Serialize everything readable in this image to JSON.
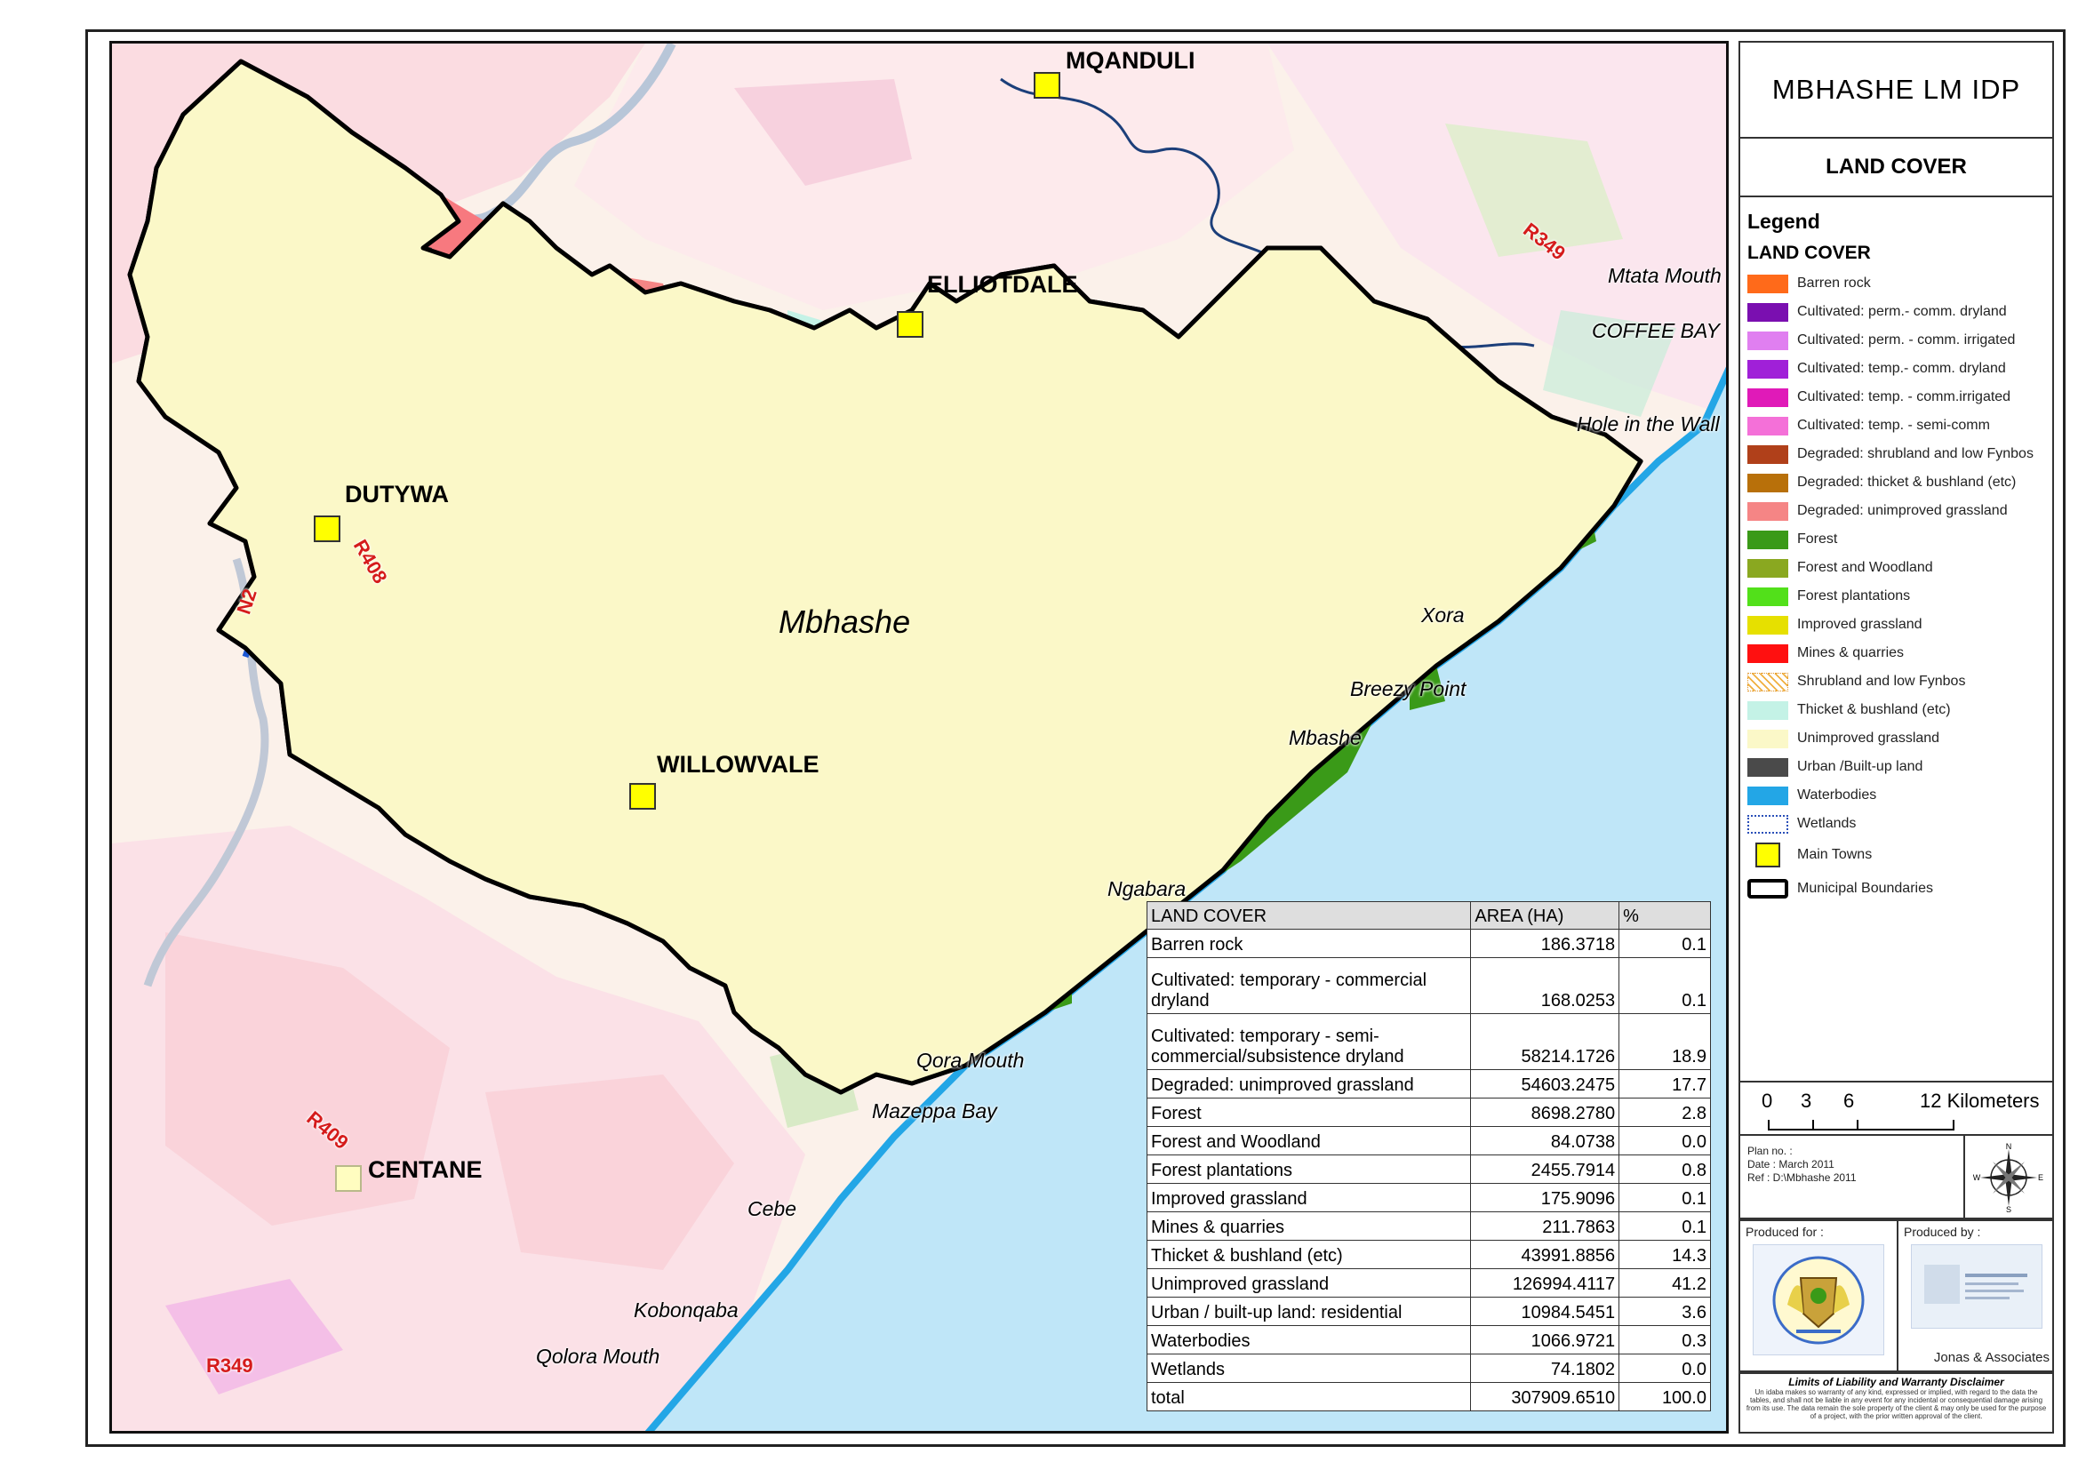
{
  "title": "MBHASHE LM IDP",
  "subtitle": "LAND COVER",
  "map_labels": {
    "towns": [
      "MQANDULI",
      "ELLIOTDALE",
      "DUTYWA",
      "WILLOWVALE",
      "CENTANE"
    ],
    "municipality": "Mbhashe",
    "roads": [
      "R349",
      "N2",
      "R408",
      "R409",
      "R349"
    ],
    "coastal": [
      "Mtata Mouth",
      "COFFEE BAY",
      "Hole in the Wall",
      "Xora",
      "Breezy Point",
      "Mbashe",
      "Ngabara",
      "Qora Mouth",
      "Mazeppa Bay",
      "Cebe",
      "Kobonqaba",
      "Qolora Mouth"
    ]
  },
  "legend": {
    "heading": "Legend",
    "subheading": "LAND COVER",
    "items": [
      {
        "label": "Barren rock",
        "color": "#ff6a1a"
      },
      {
        "label": "Cultivated: perm.- comm. dryland",
        "color": "#7a0fb0"
      },
      {
        "label": "Cultivated: perm. - comm. irrigated",
        "color": "#e07ff0"
      },
      {
        "label": "Cultivated: temp.- comm. dryland",
        "color": "#a020d8"
      },
      {
        "label": "Cultivated: temp. - comm.irrigated",
        "color": "#e01ab8"
      },
      {
        "label": "Cultivated: temp. - semi-comm",
        "color": "#f470d8"
      },
      {
        "label": "Degraded: shrubland and low Fynbos",
        "color": "#b0401a"
      },
      {
        "label": "Degraded: thicket & bushland (etc)",
        "color": "#b8700a"
      },
      {
        "label": "Degraded: unimproved grassland",
        "color": "#f58585"
      },
      {
        "label": "Forest",
        "color": "#3a9a18"
      },
      {
        "label": "Forest and Woodland",
        "color": "#8aa820"
      },
      {
        "label": "Forest plantations",
        "color": "#52e01a"
      },
      {
        "label": "Improved grassland",
        "color": "#e6e000"
      },
      {
        "label": "Mines & quarries",
        "color": "#ff1010"
      },
      {
        "label": "Shrubland and low Fynbos",
        "color": "#f0b040"
      },
      {
        "label": "Thicket & bushland (etc)",
        "color": "#c4f2e6"
      },
      {
        "label": "Unimproved grassland",
        "color": "#fbf8c8"
      },
      {
        "label": "Urban /Built-up land",
        "color": "#4a4a4a"
      },
      {
        "label": "Waterbodies",
        "color": "#23a6e6"
      },
      {
        "label": "Wetlands",
        "color": "#2a4fb8"
      },
      {
        "label": "Main Towns",
        "color": "#ffff00"
      },
      {
        "label": "Municipal Boundaries",
        "color": "#000000"
      }
    ]
  },
  "land_cover_table": {
    "headers": [
      "LAND COVER",
      "AREA (HA)",
      "%"
    ],
    "rows": [
      {
        "cover": "Barren rock",
        "area": "186.3718",
        "pct": "0.1"
      },
      {
        "cover": "Cultivated: temporary - commercial dryland",
        "area": "168.0253",
        "pct": "0.1"
      },
      {
        "cover": "Cultivated: temporary - semi-commercial/subsistence dryland",
        "area": "58214.1726",
        "pct": "18.9"
      },
      {
        "cover": "Degraded: unimproved grassland",
        "area": "54603.2475",
        "pct": "17.7"
      },
      {
        "cover": "Forest",
        "area": "8698.2780",
        "pct": "2.8"
      },
      {
        "cover": "Forest and Woodland",
        "area": "84.0738",
        "pct": "0.0"
      },
      {
        "cover": "Forest plantations",
        "area": "2455.7914",
        "pct": "0.8"
      },
      {
        "cover": "Improved grassland",
        "area": "175.9096",
        "pct": "0.1"
      },
      {
        "cover": "Mines & quarries",
        "area": "211.7863",
        "pct": "0.1"
      },
      {
        "cover": "Thicket & bushland (etc)",
        "area": "43991.8856",
        "pct": "14.3"
      },
      {
        "cover": "Unimproved grassland",
        "area": "126994.4117",
        "pct": "41.2"
      },
      {
        "cover": "Urban / built-up land: residential",
        "area": "10984.5451",
        "pct": "3.6"
      },
      {
        "cover": "Waterbodies",
        "area": "1066.9721",
        "pct": "0.3"
      },
      {
        "cover": "Wetlands",
        "area": "74.1802",
        "pct": "0.0"
      },
      {
        "cover": "total",
        "area": "307909.6510",
        "pct": "100.0"
      }
    ]
  },
  "scale": {
    "ticks": [
      "0",
      "3",
      "6",
      "12 Kilometers"
    ]
  },
  "plan_info": {
    "plan_no": "Plan no. :",
    "date": "Date : March 2011",
    "ref": "Ref : D:\\Mbhashe 2011"
  },
  "compass_letters": {
    "n": "N",
    "e": "E",
    "s": "S",
    "w": "W"
  },
  "produced_for_label": "Produced for :",
  "produced_by_label": "Produced by :",
  "producer_name": "Jonas & Associates",
  "disclaimer": {
    "title": "Limits of Liability and Warranty Disclaimer",
    "text": "Un idaba makes so warranty of any kind, expressed or implied, with regard to the data the tables, and shall not be liable in any event for any incidental or consequential damage arising from its use. The data remain the sole property of the client & may only be used for the purpose of a project, with the prior written approval of the client."
  }
}
